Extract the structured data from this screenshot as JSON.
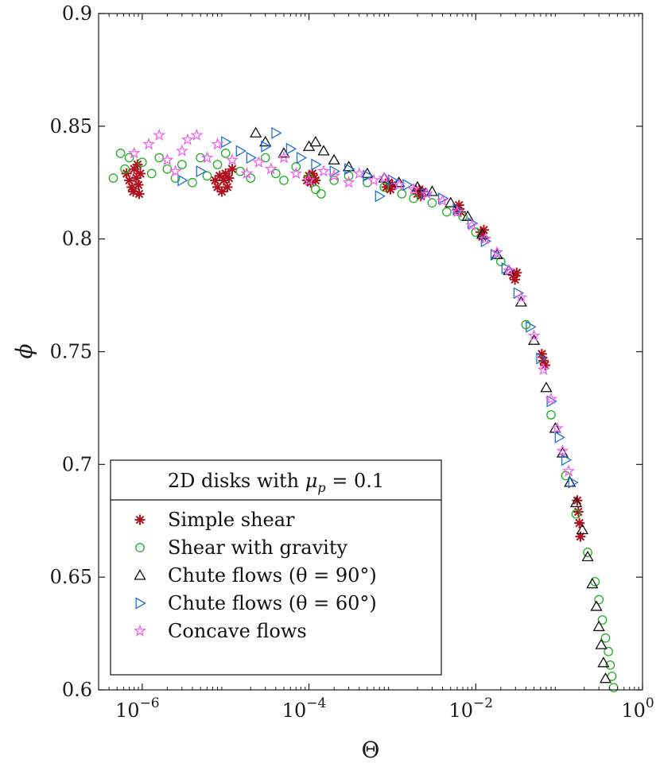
{
  "chart_data": {
    "type": "scatter",
    "title": "",
    "xlabel": "Θ",
    "ylabel": "ϕ",
    "xscale": "log",
    "xlim": [
      3e-07,
      1
    ],
    "ylim": [
      0.6,
      0.9
    ],
    "x_ticks": [
      {
        "value": 1e-06,
        "base": "10",
        "exp": "−6"
      },
      {
        "value": 0.0001,
        "base": "10",
        "exp": "−4"
      },
      {
        "value": 0.01,
        "base": "10",
        "exp": "−2"
      },
      {
        "value": 1,
        "base": "10",
        "exp": "0"
      }
    ],
    "y_ticks": [
      {
        "value": 0.6,
        "label": "0.6"
      },
      {
        "value": 0.65,
        "label": "0.65"
      },
      {
        "value": 0.7,
        "label": "0.7"
      },
      {
        "value": 0.75,
        "label": "0.75"
      },
      {
        "value": 0.8,
        "label": "0.8"
      },
      {
        "value": 0.85,
        "label": "0.85"
      },
      {
        "value": 0.9,
        "label": "0.9"
      }
    ],
    "grid": false,
    "legend": {
      "placement": "bottom-left",
      "title_text": "2D disks with ",
      "title_math": "μ",
      "title_sub": "p",
      "title_rest": " = 0.1"
    },
    "series": [
      {
        "name": "Simple shear",
        "marker": "asterisk",
        "color": "#b0101e",
        "points": [
          [
            6.5e-07,
            0.829
          ],
          [
            7e-07,
            0.826
          ],
          [
            7.5e-07,
            0.823
          ],
          [
            8e-07,
            0.831
          ],
          [
            8.5e-07,
            0.827
          ],
          [
            9e-07,
            0.824
          ],
          [
            9.5e-07,
            0.829
          ],
          [
            8.8e-07,
            0.833
          ],
          [
            7.8e-07,
            0.821
          ],
          [
            9.2e-07,
            0.82
          ],
          [
            7.5e-06,
            0.826
          ],
          [
            8e-06,
            0.823
          ],
          [
            8.5e-06,
            0.828
          ],
          [
            9e-06,
            0.821
          ],
          [
            9.5e-06,
            0.826
          ],
          [
            1e-05,
            0.829
          ],
          [
            1.1e-05,
            0.827
          ],
          [
            1.2e-05,
            0.831
          ],
          [
            1.05e-05,
            0.823
          ],
          [
            9.5e-05,
            0.826
          ],
          [
            0.0001,
            0.828
          ],
          [
            0.000105,
            0.825
          ],
          [
            0.00011,
            0.829
          ],
          [
            0.000115,
            0.827
          ],
          [
            0.00012,
            0.826
          ],
          [
            0.00085,
            0.823
          ],
          [
            0.0009,
            0.825
          ],
          [
            0.00095,
            0.822
          ],
          [
            0.001,
            0.824
          ],
          [
            0.002,
            0.82
          ],
          [
            0.0021,
            0.822
          ],
          [
            0.0022,
            0.819
          ],
          [
            0.0023,
            0.821
          ],
          [
            0.006,
            0.813
          ],
          [
            0.0063,
            0.815
          ],
          [
            0.0066,
            0.812
          ],
          [
            0.0115,
            0.803
          ],
          [
            0.012,
            0.801
          ],
          [
            0.0125,
            0.804
          ],
          [
            0.028,
            0.784
          ],
          [
            0.0295,
            0.782
          ],
          [
            0.031,
            0.785
          ],
          [
            0.062,
            0.749
          ],
          [
            0.065,
            0.746
          ],
          [
            0.068,
            0.744
          ],
          [
            0.165,
            0.684
          ],
          [
            0.17,
            0.679
          ],
          [
            0.175,
            0.674
          ],
          [
            0.18,
            0.668
          ]
        ]
      },
      {
        "name": "Shear with gravity",
        "marker": "circle",
        "color": "#1fb01f",
        "points": [
          [
            4.5e-07,
            0.827
          ],
          [
            5.5e-07,
            0.838
          ],
          [
            6.2e-07,
            0.831
          ],
          [
            7e-07,
            0.836
          ],
          [
            1e-06,
            0.834
          ],
          [
            1.3e-06,
            0.829
          ],
          [
            1.6e-06,
            0.836
          ],
          [
            2e-06,
            0.831
          ],
          [
            2.5e-06,
            0.827
          ],
          [
            3e-06,
            0.833
          ],
          [
            4e-06,
            0.825
          ],
          [
            5e-06,
            0.836
          ],
          [
            6e-06,
            0.828
          ],
          [
            8e-06,
            0.833
          ],
          [
            1e-05,
            0.838
          ],
          [
            1.5e-05,
            0.83
          ],
          [
            2e-05,
            0.827
          ],
          [
            3e-05,
            0.836
          ],
          [
            4e-05,
            0.829
          ],
          [
            5e-05,
            0.826
          ],
          [
            7e-05,
            0.832
          ],
          [
            0.0001,
            0.827
          ],
          [
            0.00012,
            0.822
          ],
          [
            0.00014,
            0.82
          ],
          [
            0.0002,
            0.826
          ],
          [
            0.0003,
            0.828
          ],
          [
            0.0005,
            0.825
          ],
          [
            0.0008,
            0.823
          ],
          [
            0.0013,
            0.82
          ],
          [
            0.0018,
            0.818
          ],
          [
            0.003,
            0.816
          ],
          [
            0.0045,
            0.812
          ],
          [
            0.007,
            0.81
          ],
          [
            0.01,
            0.803
          ],
          [
            0.02,
            0.79
          ],
          [
            0.04,
            0.762
          ],
          [
            0.08,
            0.722
          ],
          [
            0.12,
            0.695
          ],
          [
            0.16,
            0.678
          ],
          [
            0.22,
            0.661
          ],
          [
            0.27,
            0.648
          ],
          [
            0.3,
            0.64
          ],
          [
            0.33,
            0.631
          ],
          [
            0.36,
            0.623
          ],
          [
            0.39,
            0.617
          ],
          [
            0.41,
            0.611
          ],
          [
            0.43,
            0.606
          ],
          [
            0.45,
            0.601
          ]
        ]
      },
      {
        "name": "Chute flows (θ = 90°)",
        "marker": "triangle-up",
        "color": "#111111",
        "points": [
          [
            2.3e-05,
            0.847
          ],
          [
            3e-05,
            0.843
          ],
          [
            5e-05,
            0.838
          ],
          [
            0.0001,
            0.841
          ],
          [
            0.00012,
            0.843
          ],
          [
            0.00015,
            0.839
          ],
          [
            0.0002,
            0.835
          ],
          [
            0.0003,
            0.832
          ],
          [
            0.0005,
            0.829
          ],
          [
            0.0008,
            0.827
          ],
          [
            0.0012,
            0.825
          ],
          [
            0.002,
            0.823
          ],
          [
            0.003,
            0.821
          ],
          [
            0.005,
            0.816
          ],
          [
            0.008,
            0.81
          ],
          [
            0.012,
            0.802
          ],
          [
            0.018,
            0.793
          ],
          [
            0.025,
            0.786
          ],
          [
            0.035,
            0.772
          ],
          [
            0.05,
            0.755
          ],
          [
            0.07,
            0.734
          ],
          [
            0.09,
            0.716
          ],
          [
            0.11,
            0.705
          ],
          [
            0.135,
            0.692
          ],
          [
            0.16,
            0.683
          ],
          [
            0.19,
            0.671
          ],
          [
            0.22,
            0.659
          ],
          [
            0.25,
            0.647
          ],
          [
            0.28,
            0.637
          ],
          [
            0.3,
            0.628
          ],
          [
            0.32,
            0.62
          ],
          [
            0.34,
            0.612
          ],
          [
            0.36,
            0.605
          ]
        ]
      },
      {
        "name": "Chute flows (θ = 60°)",
        "marker": "triangle-right",
        "color": "#1f6fd9",
        "points": [
          [
            3e-06,
            0.826
          ],
          [
            5e-06,
            0.83
          ],
          [
            1e-05,
            0.843
          ],
          [
            1.5e-05,
            0.839
          ],
          [
            2e-05,
            0.836
          ],
          [
            3e-05,
            0.841
          ],
          [
            4e-05,
            0.847
          ],
          [
            6e-05,
            0.84
          ],
          [
            8e-05,
            0.836
          ],
          [
            0.00012,
            0.833
          ],
          [
            0.0002,
            0.83
          ],
          [
            0.0003,
            0.831
          ],
          [
            0.0005,
            0.828
          ],
          [
            0.0007,
            0.819
          ],
          [
            0.001,
            0.826
          ],
          [
            0.0015,
            0.824
          ],
          [
            0.0025,
            0.82
          ],
          [
            0.004,
            0.818
          ],
          [
            0.006,
            0.813
          ],
          [
            0.009,
            0.807
          ],
          [
            0.013,
            0.799
          ],
          [
            0.017,
            0.793
          ],
          [
            0.023,
            0.787
          ],
          [
            0.032,
            0.776
          ],
          [
            0.045,
            0.761
          ],
          [
            0.06,
            0.747
          ],
          [
            0.08,
            0.728
          ],
          [
            0.1,
            0.712
          ],
          [
            0.12,
            0.702
          ],
          [
            0.145,
            0.692
          ]
        ]
      },
      {
        "name": "Concave flows",
        "marker": "star",
        "color": "#f25ff2",
        "points": [
          [
            8e-07,
            0.838
          ],
          [
            1.2e-06,
            0.842
          ],
          [
            1.6e-06,
            0.846
          ],
          [
            2e-06,
            0.835
          ],
          [
            2.5e-06,
            0.83
          ],
          [
            3e-06,
            0.839
          ],
          [
            3.5e-06,
            0.844
          ],
          [
            4.5e-06,
            0.846
          ],
          [
            6e-06,
            0.836
          ],
          [
            8e-06,
            0.842
          ],
          [
            1.2e-05,
            0.835
          ],
          [
            1.8e-05,
            0.829
          ],
          [
            2.5e-05,
            0.834
          ],
          [
            3.5e-05,
            0.831
          ],
          [
            5e-05,
            0.836
          ],
          [
            7e-05,
            0.829
          ],
          [
            0.0001,
            0.826
          ],
          [
            0.00015,
            0.83
          ],
          [
            0.0002,
            0.828
          ],
          [
            0.0003,
            0.825
          ],
          [
            0.0004,
            0.829
          ],
          [
            0.0006,
            0.826
          ],
          [
            0.0008,
            0.827
          ],
          [
            0.0012,
            0.824
          ],
          [
            0.0018,
            0.822
          ],
          [
            0.0026,
            0.82
          ],
          [
            0.004,
            0.817
          ],
          [
            0.006,
            0.812
          ],
          [
            0.009,
            0.806
          ],
          [
            0.013,
            0.8
          ],
          [
            0.018,
            0.794
          ],
          [
            0.025,
            0.786
          ],
          [
            0.035,
            0.774
          ],
          [
            0.05,
            0.757
          ],
          [
            0.065,
            0.742
          ],
          [
            0.08,
            0.729
          ],
          [
            0.095,
            0.716
          ],
          [
            0.11,
            0.706
          ],
          [
            0.13,
            0.697
          ]
        ]
      }
    ]
  }
}
